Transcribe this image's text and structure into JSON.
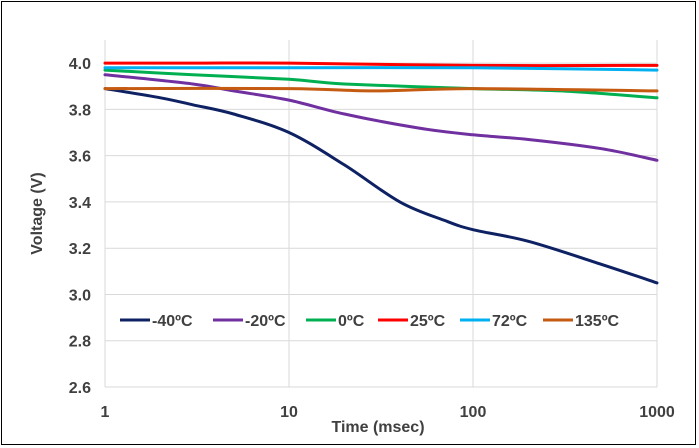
{
  "chart_data": {
    "type": "line",
    "xlabel": "Time (msec)",
    "ylabel": "Voltage (V)",
    "x_scale": "log",
    "xlim": [
      1,
      1000
    ],
    "ylim": [
      2.6,
      4.1
    ],
    "x_ticks": [
      "1",
      "10",
      "100",
      "1000"
    ],
    "y_ticks": [
      "2.6",
      "2.8",
      "3.0",
      "3.2",
      "3.4",
      "3.6",
      "3.8",
      "4.0"
    ],
    "grid": true,
    "legend_position": "bottom-inside",
    "series": [
      {
        "name": "-40ºC",
        "color": "#0e2163",
        "points": [
          [
            1,
            3.89
          ],
          [
            2,
            3.85
          ],
          [
            3,
            3.82
          ],
          [
            5,
            3.78
          ],
          [
            10,
            3.7
          ],
          [
            20,
            3.56
          ],
          [
            40,
            3.4
          ],
          [
            70,
            3.32
          ],
          [
            100,
            3.28
          ],
          [
            200,
            3.23
          ],
          [
            500,
            3.13
          ],
          [
            1000,
            3.05
          ]
        ]
      },
      {
        "name": "-20ºC",
        "color": "#7030a0",
        "points": [
          [
            1,
            3.95
          ],
          [
            3,
            3.91
          ],
          [
            5,
            3.88
          ],
          [
            10,
            3.84
          ],
          [
            20,
            3.78
          ],
          [
            50,
            3.72
          ],
          [
            100,
            3.69
          ],
          [
            200,
            3.67
          ],
          [
            500,
            3.63
          ],
          [
            1000,
            3.58
          ]
        ]
      },
      {
        "name": "0ºC",
        "color": "#00b050",
        "points": [
          [
            1,
            3.97
          ],
          [
            3,
            3.95
          ],
          [
            10,
            3.93
          ],
          [
            20,
            3.91
          ],
          [
            100,
            3.89
          ],
          [
            300,
            3.88
          ],
          [
            1000,
            3.85
          ]
        ]
      },
      {
        "name": "25ºC",
        "color": "#ff0000",
        "points": [
          [
            1,
            4.0
          ],
          [
            3,
            4.0
          ],
          [
            10,
            4.0
          ],
          [
            100,
            3.99
          ],
          [
            1000,
            3.99
          ]
        ]
      },
      {
        "name": "72ºC",
        "color": "#00b0f0",
        "points": [
          [
            1,
            3.98
          ],
          [
            10,
            3.98
          ],
          [
            100,
            3.98
          ],
          [
            1000,
            3.97
          ]
        ]
      },
      {
        "name": "135ºC",
        "color": "#c55a11",
        "points": [
          [
            1,
            3.89
          ],
          [
            10,
            3.89
          ],
          [
            30,
            3.88
          ],
          [
            100,
            3.89
          ],
          [
            1000,
            3.88
          ]
        ]
      }
    ]
  }
}
